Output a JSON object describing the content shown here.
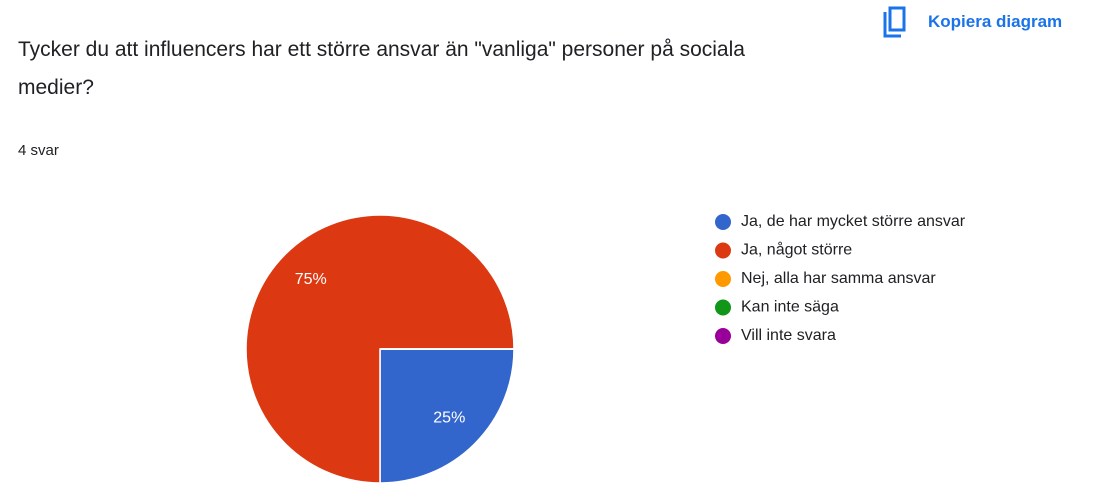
{
  "header": {
    "copy_button": "Kopiera diagram"
  },
  "response_count": "4 svar",
  "chart_data": {
    "type": "pie",
    "title": "Tycker du att influencers har ett större ansvar än \"vanliga\" personer på sociala medier?",
    "categories": [
      "Ja, de har mycket större ansvar",
      "Ja, något större",
      "Nej, alla har samma ansvar",
      "Kan inte säga",
      "Vill inte svara"
    ],
    "values": [
      25,
      75,
      0,
      0,
      0
    ],
    "value_labels": [
      "25%",
      "75%",
      null,
      null,
      null
    ],
    "colors": [
      "#3366cc",
      "#dc3912",
      "#ff9900",
      "#109618",
      "#990099"
    ],
    "legend": "right"
  }
}
